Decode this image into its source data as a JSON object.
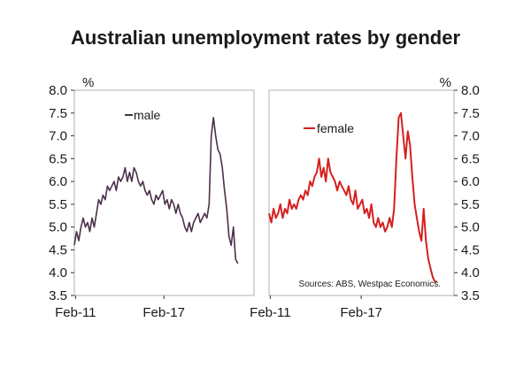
{
  "title": "Australian unemployment rates by gender",
  "source": "Sources: ABS, Westpac Economics.",
  "colors": {
    "male": "#4b3049",
    "female": "#d6201f",
    "frame": "#b0b0b0",
    "axis": "#333333"
  },
  "chart_data": [
    {
      "type": "line",
      "unit_label": "%",
      "ylim": [
        3.5,
        8.0
      ],
      "xlim": [
        2011.0,
        2023.2
      ],
      "yticks": [
        "3.5",
        "4.0",
        "4.5",
        "5.0",
        "5.5",
        "6.0",
        "6.5",
        "7.0",
        "7.5",
        "8.0"
      ],
      "xticks": [
        {
          "label": "Feb-11",
          "x": 2011.08
        },
        {
          "label": "Feb-17",
          "x": 2017.08
        }
      ],
      "legend_position": "top-left",
      "series": [
        {
          "name": "male",
          "x": [
            2011.0,
            2011.15,
            2011.3,
            2011.45,
            2011.6,
            2011.75,
            2011.9,
            2012.05,
            2012.2,
            2012.35,
            2012.5,
            2012.65,
            2012.8,
            2012.95,
            2013.1,
            2013.25,
            2013.4,
            2013.55,
            2013.7,
            2013.85,
            2014.0,
            2014.15,
            2014.3,
            2014.45,
            2014.6,
            2014.75,
            2014.9,
            2015.05,
            2015.2,
            2015.35,
            2015.5,
            2015.65,
            2015.8,
            2015.95,
            2016.1,
            2016.25,
            2016.4,
            2016.55,
            2016.7,
            2016.85,
            2017.0,
            2017.15,
            2017.3,
            2017.45,
            2017.6,
            2017.75,
            2017.9,
            2018.05,
            2018.2,
            2018.35,
            2018.5,
            2018.65,
            2018.8,
            2018.95,
            2019.1,
            2019.25,
            2019.4,
            2019.55,
            2019.7,
            2019.85,
            2020.0,
            2020.15,
            2020.3,
            2020.45,
            2020.6,
            2020.75,
            2020.9,
            2021.05,
            2021.2,
            2021.35,
            2021.5,
            2021.65,
            2021.8,
            2021.95,
            2022.1
          ],
          "values": [
            4.6,
            4.9,
            4.7,
            5.0,
            5.2,
            5.0,
            5.1,
            4.9,
            5.2,
            5.0,
            5.3,
            5.6,
            5.5,
            5.7,
            5.6,
            5.9,
            5.8,
            5.9,
            6.0,
            5.8,
            6.1,
            6.0,
            6.1,
            6.3,
            6.0,
            6.2,
            6.0,
            6.3,
            6.2,
            6.0,
            5.9,
            6.0,
            5.8,
            5.7,
            5.8,
            5.6,
            5.5,
            5.7,
            5.6,
            5.7,
            5.8,
            5.5,
            5.6,
            5.4,
            5.6,
            5.5,
            5.3,
            5.5,
            5.3,
            5.2,
            5.0,
            4.9,
            5.1,
            4.9,
            5.1,
            5.2,
            5.3,
            5.1,
            5.2,
            5.3,
            5.2,
            5.5,
            7.0,
            7.4,
            7.0,
            6.7,
            6.6,
            6.3,
            5.8,
            5.4,
            4.8,
            4.6,
            5.0,
            4.3,
            4.2
          ]
        }
      ]
    },
    {
      "type": "line",
      "unit_label": "%",
      "ylim": [
        3.5,
        8.0
      ],
      "xlim": [
        2011.0,
        2023.2
      ],
      "yticks": [
        "3.5",
        "4.0",
        "4.5",
        "5.0",
        "5.5",
        "6.0",
        "6.5",
        "7.0",
        "7.5",
        "8.0"
      ],
      "xticks": [
        {
          "label": "Feb-11",
          "x": 2011.08
        },
        {
          "label": "Feb-17",
          "x": 2017.08
        }
      ],
      "legend_position": "top-left",
      "series": [
        {
          "name": "female",
          "x": [
            2011.0,
            2011.15,
            2011.3,
            2011.45,
            2011.6,
            2011.75,
            2011.9,
            2012.05,
            2012.2,
            2012.35,
            2012.5,
            2012.65,
            2012.8,
            2012.95,
            2013.1,
            2013.25,
            2013.4,
            2013.55,
            2013.7,
            2013.85,
            2014.0,
            2014.15,
            2014.3,
            2014.45,
            2014.6,
            2014.75,
            2014.9,
            2015.05,
            2015.2,
            2015.35,
            2015.5,
            2015.65,
            2015.8,
            2015.95,
            2016.1,
            2016.25,
            2016.4,
            2016.55,
            2016.7,
            2016.85,
            2017.0,
            2017.15,
            2017.3,
            2017.45,
            2017.6,
            2017.75,
            2017.9,
            2018.05,
            2018.2,
            2018.35,
            2018.5,
            2018.65,
            2018.8,
            2018.95,
            2019.1,
            2019.25,
            2019.4,
            2019.55,
            2019.7,
            2019.85,
            2020.0,
            2020.15,
            2020.3,
            2020.45,
            2020.6,
            2020.75,
            2020.9,
            2021.05,
            2021.2,
            2021.35,
            2021.5,
            2021.65,
            2021.8,
            2021.95,
            2022.1
          ],
          "values": [
            5.3,
            5.1,
            5.4,
            5.2,
            5.3,
            5.5,
            5.2,
            5.4,
            5.3,
            5.6,
            5.4,
            5.5,
            5.4,
            5.6,
            5.7,
            5.6,
            5.8,
            5.7,
            6.0,
            5.9,
            6.1,
            6.2,
            6.5,
            6.1,
            6.3,
            6.0,
            6.5,
            6.2,
            6.1,
            6.0,
            5.8,
            6.0,
            5.9,
            5.8,
            5.7,
            5.9,
            5.6,
            5.5,
            5.8,
            5.4,
            5.5,
            5.6,
            5.3,
            5.4,
            5.2,
            5.5,
            5.1,
            5.0,
            5.2,
            5.0,
            5.1,
            4.9,
            5.0,
            5.2,
            5.0,
            5.4,
            6.5,
            7.4,
            7.5,
            7.0,
            6.5,
            7.1,
            6.8,
            6.1,
            5.5,
            5.2,
            4.9,
            4.7,
            5.4,
            4.7,
            4.3,
            4.1,
            3.9,
            3.8,
            3.8
          ]
        }
      ]
    }
  ]
}
